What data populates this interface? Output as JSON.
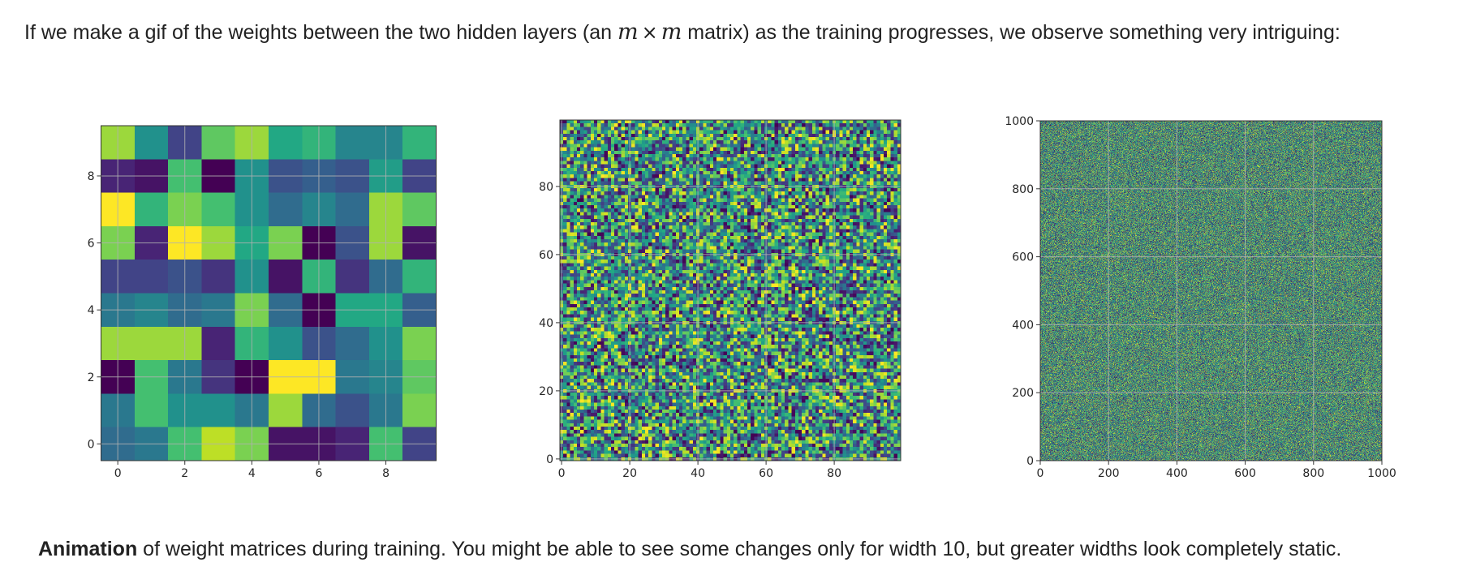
{
  "intro": {
    "before": "If we make a gif of the weights between the two hidden layers (an ",
    "m1": "m",
    "times": "×",
    "m2": "m",
    "after": " matrix) as the training progresses, we observe something very intriguing:"
  },
  "caption": {
    "bold": "Animation",
    "rest": " of weight matrices during training. You might be able to see some changes only for width 10, but greater widths look completely static."
  },
  "colors": {
    "low": "#440154",
    "mid": "#21918c",
    "high": "#fde725",
    "grid": "#b0b0b0"
  },
  "chart_data": [
    {
      "type": "heatmap",
      "title": "",
      "n": 10,
      "xticks": [
        0,
        2,
        4,
        6,
        8
      ],
      "yticks": [
        0,
        2,
        4,
        6,
        8
      ],
      "grid": true,
      "colormap": "viridis",
      "values_top_row_first": [
        [
          0.85,
          0.5,
          0.2,
          0.75,
          0.85,
          0.6,
          0.65,
          0.45,
          0.45,
          0.65
        ],
        [
          0.1,
          0.05,
          0.7,
          0.0,
          0.5,
          0.25,
          0.3,
          0.25,
          0.55,
          0.2
        ],
        [
          1.0,
          0.65,
          0.8,
          0.7,
          0.5,
          0.35,
          0.45,
          0.35,
          0.85,
          0.75
        ],
        [
          0.8,
          0.1,
          1.0,
          0.85,
          0.6,
          0.8,
          0.0,
          0.25,
          0.85,
          0.05
        ],
        [
          0.2,
          0.2,
          0.25,
          0.15,
          0.5,
          0.05,
          0.65,
          0.15,
          0.35,
          0.65
        ],
        [
          0.4,
          0.45,
          0.35,
          0.4,
          0.8,
          0.35,
          0.0,
          0.6,
          0.6,
          0.3
        ],
        [
          0.85,
          0.85,
          0.85,
          0.1,
          0.65,
          0.5,
          0.25,
          0.35,
          0.5,
          0.8
        ],
        [
          0.0,
          0.7,
          0.4,
          0.15,
          0.0,
          1.0,
          1.0,
          0.4,
          0.45,
          0.75
        ],
        [
          0.4,
          0.7,
          0.5,
          0.5,
          0.4,
          0.85,
          0.35,
          0.25,
          0.4,
          0.8
        ],
        [
          0.35,
          0.4,
          0.7,
          0.9,
          0.8,
          0.05,
          0.05,
          0.1,
          0.7,
          0.2
        ]
      ]
    },
    {
      "type": "heatmap",
      "title": "",
      "n": 100,
      "values": "dense random weights",
      "xticks": [
        0,
        20,
        40,
        60,
        80
      ],
      "yticks": [
        0,
        20,
        40,
        60,
        80
      ],
      "grid": true,
      "colormap": "viridis"
    },
    {
      "type": "heatmap",
      "title": "",
      "n": 1000,
      "values": "dense random weights",
      "xticks": [
        0,
        200,
        400,
        600,
        800,
        1000
      ],
      "yticks": [
        0,
        200,
        400,
        600,
        800,
        1000
      ],
      "grid": true,
      "colormap": "viridis"
    }
  ]
}
